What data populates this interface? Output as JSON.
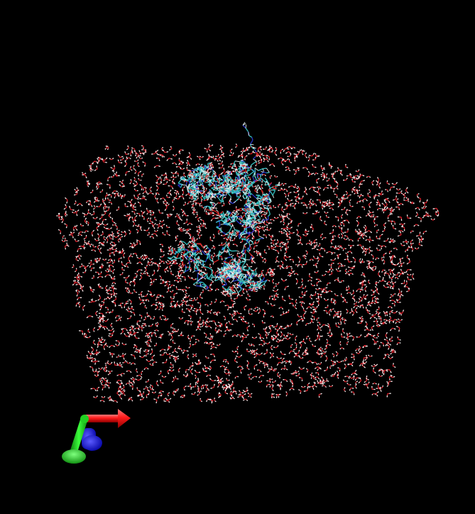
{
  "viewer": {
    "background_color": "#000000",
    "representation": "lines",
    "colors": {
      "water_oxygen": "#d8202a",
      "water_hydrogen": "#f2e9e9",
      "solute_carbon": "#37c8c8",
      "solute_nitrogen": "#2b3bd6",
      "solute_oxygen": "#e02424",
      "solute_hydrogen": "#e8f4f4"
    }
  },
  "axes": {
    "x_axis_color": "#ff1a1a",
    "y_axis_color": "#18e018",
    "z_axis_color": "#1a1aff",
    "icons": [
      "x-axis-arrow-icon",
      "y-axis-arrow-icon",
      "z-axis-arrow-icon"
    ]
  }
}
